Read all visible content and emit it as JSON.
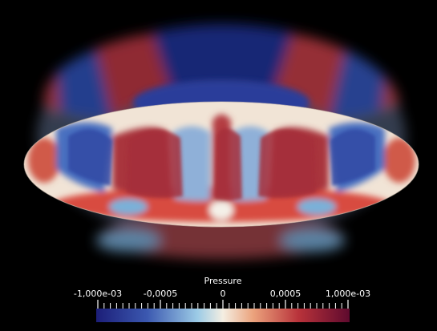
{
  "colorbar": {
    "title": "Pressure",
    "range": [
      -0.001,
      0.001
    ],
    "ticks": [
      {
        "value": -0.001,
        "label": "-1,000e-03"
      },
      {
        "value": -0.0005,
        "label": "-0,0005"
      },
      0,
      {
        "value": 0.0005,
        "label": "0,0005"
      },
      {
        "value": 0.001,
        "label": "1,000e-03"
      }
    ]
  }
}
